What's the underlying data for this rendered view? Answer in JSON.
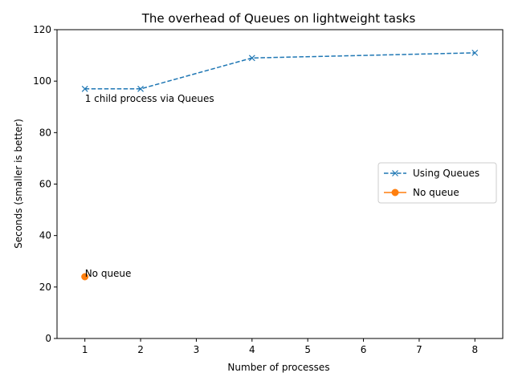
{
  "chart_data": {
    "type": "line",
    "title": "The overhead of Queues on lightweight tasks",
    "xlabel": "Number of processes",
    "ylabel": "Seconds (smaller is better)",
    "xlim": [
      0.5,
      8.5
    ],
    "ylim": [
      0,
      120
    ],
    "xticks": [
      1,
      2,
      3,
      4,
      5,
      6,
      7,
      8
    ],
    "yticks": [
      0,
      20,
      40,
      60,
      80,
      100,
      120
    ],
    "grid": false,
    "legend_position": "center-right",
    "series": [
      {
        "name": "Using Queues",
        "color": "#1f77b4",
        "line_style": "dashed",
        "marker": "x",
        "x": [
          1,
          2,
          4,
          8
        ],
        "y": [
          97,
          97,
          109,
          111
        ]
      },
      {
        "name": "No queue",
        "color": "#ff7f0e",
        "line_style": "solid",
        "marker": "circle",
        "x": [
          1
        ],
        "y": [
          24
        ]
      }
    ],
    "annotations": [
      {
        "text": "1 child process via Queues",
        "x": 1,
        "y": 92
      },
      {
        "text": "No queue",
        "x": 1,
        "y": 24
      }
    ]
  }
}
